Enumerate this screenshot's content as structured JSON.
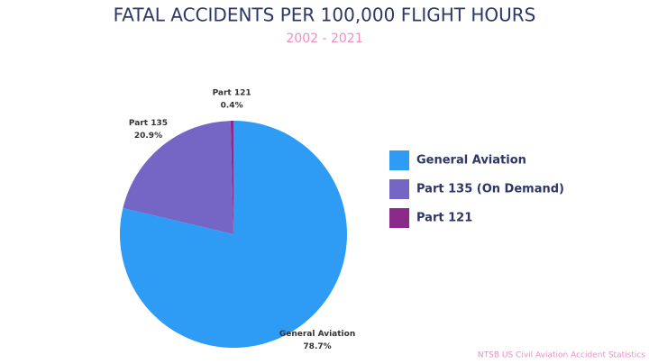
{
  "chart_data": {
    "type": "pie",
    "title": "FATAL ACCIDENTS PER 100,000 FLIGHT HOURS",
    "subtitle": "2002 - 2021",
    "categories": [
      "General Aviation",
      "Part 135 (On Demand)",
      "Part 121"
    ],
    "slice_labels": [
      "General Aviation",
      "Part 135",
      "Part 121"
    ],
    "values": [
      78.7,
      20.9,
      0.4
    ],
    "value_labels": [
      "78.7%",
      "20.9%",
      "0.4%"
    ],
    "colors": [
      "#2e9bf5",
      "#7566c6",
      "#8a2a8a"
    ],
    "legend": "right",
    "source": "NTSB US Civil Aviation Accident Statistics"
  }
}
